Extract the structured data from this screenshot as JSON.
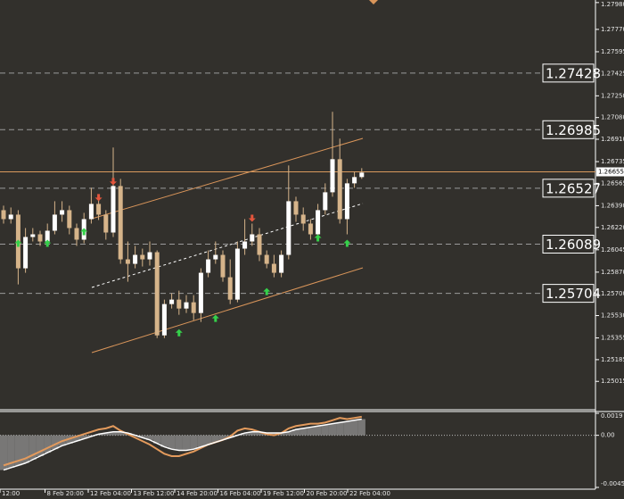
{
  "chart_data": {
    "type": "candlestick",
    "ylim": [
      1.248,
      1.28
    ],
    "yticks": [
      {
        "value": 1.2798,
        "label": "1.27980"
      },
      {
        "value": 1.2777,
        "label": "1.27770"
      },
      1.27595,
      1.27425,
      {
        "value": 1.2725,
        "label": "1.27250"
      },
      {
        "value": 1.2708,
        "label": "1.27080"
      },
      {
        "value": 1.2691,
        "label": "1.26910"
      },
      1.26735,
      1.26565,
      {
        "value": 1.2639,
        "label": "1.26390"
      },
      {
        "value": 1.2622,
        "label": "1.26220"
      },
      1.26045,
      {
        "value": 1.2587,
        "label": "1.25870"
      },
      {
        "value": 1.257,
        "label": "1.25700"
      },
      {
        "value": 1.2553,
        "label": "1.25530"
      },
      1.25355,
      1.25185,
      1.25015
    ],
    "x_labels": [
      "12:00",
      "8 Feb 20:00",
      "12 Feb 04:00",
      "13 Feb 12:00",
      "14 Feb 20:00",
      "16 Feb 04:00",
      "19 Feb 12:00",
      "20 Feb 20:00",
      "22 Feb 04:00"
    ],
    "up_color": "#ffffff",
    "down_color": "#d6b48a",
    "open": [
      1.26355,
      1.26285,
      1.2632,
      1.259,
      1.26145,
      1.26166,
      1.2611,
      1.26194,
      1.2632,
      1.26355,
      1.26215,
      1.26124,
      1.26285,
      1.26404,
      1.2632,
      1.2618,
      1.26544,
      1.2597,
      1.25935,
      1.26005,
      1.2597,
      1.26026,
      1.25375,
      1.2562,
      1.25655,
      1.25585,
      1.25634,
      1.2555,
      1.25865,
      1.2597,
      1.26005,
      1.2583,
      1.25655,
      1.26054,
      1.2611,
      1.26166,
      1.26005,
      1.25935,
      1.25865,
      1.26005,
      1.26425,
      1.2632,
      1.2625,
      1.26166,
      1.26355,
      1.26495,
      1.26754,
      1.26285,
      1.26565,
      1.26614
    ],
    "high": [
      1.2639,
      1.26376,
      1.26355,
      1.26215,
      1.26215,
      1.26194,
      1.2625,
      1.26425,
      1.26425,
      1.2639,
      1.2625,
      1.26334,
      1.2653,
      1.26446,
      1.26355,
      1.26845,
      1.266,
      1.2611,
      1.26075,
      1.26054,
      1.2611,
      1.2604,
      1.25655,
      1.25704,
      1.25725,
      1.2569,
      1.2569,
      1.259,
      1.2604,
      1.2611,
      1.2604,
      1.2597,
      1.2611,
      1.26285,
      1.2625,
      1.26215,
      1.2604,
      1.26005,
      1.2604,
      1.26705,
      1.2646,
      1.26376,
      1.26285,
      1.26404,
      1.26565,
      1.27125,
      1.26915,
      1.266,
      1.26656,
      1.26684
    ],
    "low": [
      1.2625,
      1.2625,
      1.25774,
      1.25865,
      1.2611,
      1.26075,
      1.26075,
      1.26166,
      1.26264,
      1.26166,
      1.26075,
      1.26096,
      1.2625,
      1.26278,
      1.26124,
      1.26145,
      1.25935,
      1.25795,
      1.259,
      1.25914,
      1.25921,
      1.25354,
      1.25354,
      1.25585,
      1.25536,
      1.2555,
      1.25494,
      1.2548,
      1.2583,
      1.25935,
      1.25795,
      1.2562,
      1.25634,
      1.26005,
      1.26075,
      1.25956,
      1.259,
      1.2583,
      1.2583,
      1.2597,
      1.26264,
      1.26194,
      1.26124,
      1.2611,
      1.2632,
      1.2646,
      1.2625,
      1.26166,
      1.2653,
      1.266
    ],
    "close": [
      1.26285,
      1.2632,
      1.259,
      1.26145,
      1.26166,
      1.2611,
      1.26194,
      1.2632,
      1.26355,
      1.26215,
      1.26124,
      1.26285,
      1.26404,
      1.2632,
      1.2618,
      1.26544,
      1.2597,
      1.25935,
      1.26005,
      1.2597,
      1.26026,
      1.25375,
      1.2562,
      1.25655,
      1.25585,
      1.25634,
      1.2555,
      1.25865,
      1.2597,
      1.26005,
      1.2583,
      1.25655,
      1.26054,
      1.2611,
      1.26166,
      1.26005,
      1.25935,
      1.25865,
      1.26005,
      1.26425,
      1.2632,
      1.2625,
      1.26166,
      1.26355,
      1.26495,
      1.26754,
      1.26285,
      1.26565,
      1.26614,
      1.26649
    ],
    "buy_signals": [
      null,
      null,
      1.26124,
      null,
      null,
      null,
      1.26124,
      null,
      null,
      null,
      null,
      1.26215,
      null,
      null,
      null,
      null,
      null,
      null,
      null,
      null,
      null,
      null,
      null,
      null,
      1.25424,
      null,
      null,
      null,
      null,
      1.25536,
      null,
      null,
      null,
      null,
      null,
      null,
      1.25746,
      null,
      null,
      null,
      null,
      null,
      null,
      1.26166,
      null,
      null,
      null,
      1.26124,
      null,
      null
    ],
    "sell_signals": [
      null,
      null,
      null,
      null,
      null,
      null,
      null,
      null,
      null,
      null,
      null,
      null,
      null,
      1.26425,
      null,
      1.26551,
      null,
      null,
      null,
      null,
      null,
      null,
      null,
      null,
      null,
      null,
      null,
      null,
      null,
      null,
      null,
      null,
      null,
      null,
      1.26264,
      null,
      null,
      null,
      null,
      null,
      null,
      null,
      null,
      null,
      null,
      null,
      null,
      null,
      null,
      null
    ],
    "color_buy": "#35d14a",
    "color_sell": "#e4553c",
    "levels": [
      1.27428,
      1.26985,
      1.26527,
      1.26089,
      1.25704
    ],
    "current_price": 1.26655,
    "current_color": "#d99a5e",
    "indicator": {
      "ylim": [
        -0.0045,
        0.0019
      ],
      "yticks": [
        0.0019,
        {
          "value": 0,
          "label": "0.00"
        },
        -0.0045
      ],
      "fast": [
        -0.0026,
        -0.0024,
        -0.0022,
        -0.002,
        -0.0017,
        -0.0014,
        -0.0011,
        -0.0008,
        -0.0005,
        -0.0003,
        -0.0001,
        0.0001,
        0.0003,
        0.0005,
        0.0006,
        0.0008,
        0.0004,
        0.0001,
        -0.0002,
        -0.0005,
        -0.0008,
        -0.0012,
        -0.0016,
        -0.0018,
        -0.0018,
        -0.0016,
        -0.0014,
        -0.0011,
        -0.0008,
        -0.0006,
        -0.0004,
        -0.0001,
        0.0004,
        0.0006,
        0.0005,
        0.0003,
        0.0001,
        0,
        0.0002,
        0.0006,
        0.0008,
        0.0009,
        0.001,
        0.001,
        0.0011,
        0.0013,
        0.0015,
        0.0014,
        0.0015,
        0.0016
      ],
      "slow": [
        -0.003,
        -0.0028,
        -0.0026,
        -0.0024,
        -0.0021,
        -0.0018,
        -0.0015,
        -0.0012,
        -0.0009,
        -0.0007,
        -0.0005,
        -0.0003,
        -0.0001,
        0.0001,
        0.0002,
        0.0003,
        0.0003,
        0.0002,
        0,
        -0.0002,
        -0.0004,
        -0.0007,
        -0.001,
        -0.0012,
        -0.0013,
        -0.0013,
        -0.0012,
        -0.001,
        -0.0008,
        -0.0006,
        -0.0004,
        -0.0002,
        0,
        0.0002,
        0.0003,
        0.0003,
        0.0002,
        0.0002,
        0.0002,
        0.0003,
        0.0005,
        0.0006,
        0.0007,
        0.0008,
        0.0009,
        0.001,
        0.0011,
        0.0012,
        0.0013,
        0.0014
      ],
      "fast_color": "#e39a5c",
      "slow_color": "#ffffff",
      "hist_color": "#8a8a8a"
    }
  }
}
